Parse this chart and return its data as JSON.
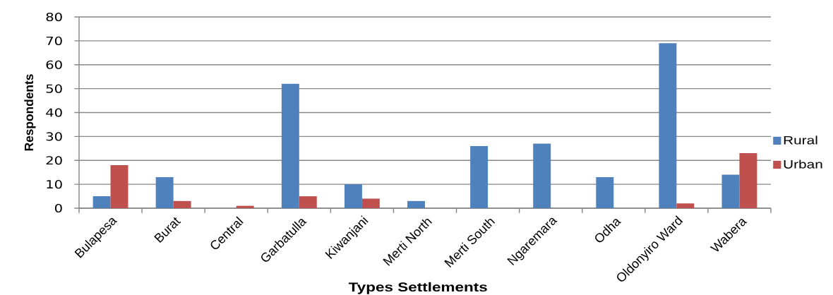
{
  "chart_data": {
    "type": "bar",
    "xlabel": "Types Settlements",
    "ylabel": "Respondents",
    "categories": [
      "Bulapesa",
      "Burat",
      "Central",
      "Garbatulla",
      "Kiwanjani",
      "Merti North",
      "Merti South",
      "Ngaremara",
      "Odha",
      "Oldonyiro Ward",
      "Wabera"
    ],
    "series": [
      {
        "name": "Rural",
        "color": "#4f81bd",
        "values": [
          5,
          13,
          0,
          52,
          10,
          3,
          26,
          27,
          13,
          69,
          14
        ]
      },
      {
        "name": "Urban",
        "color": "#c0504d",
        "values": [
          18,
          3,
          1,
          5,
          4,
          0,
          0,
          0,
          0,
          2,
          23
        ]
      }
    ],
    "ylim": [
      0,
      80
    ],
    "yticks": [
      0,
      10,
      20,
      30,
      40,
      50,
      60,
      70,
      80
    ],
    "grid": "y",
    "legend": "right"
  }
}
